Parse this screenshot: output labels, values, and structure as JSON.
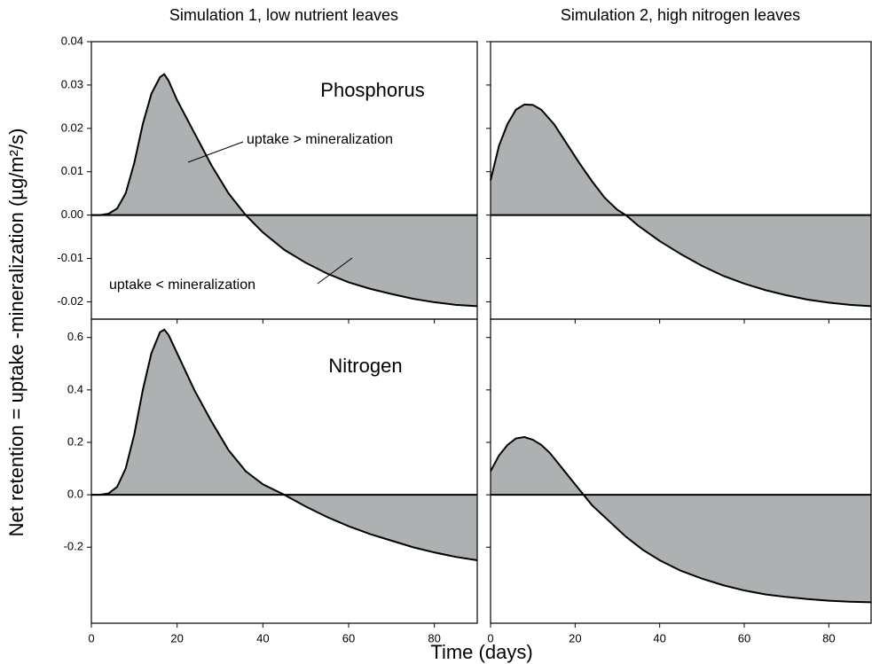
{
  "figure": {
    "y_label": "Net retention = uptake -mineralization  (µg/m²/s)",
    "x_label": "Time (days)"
  },
  "chart_data": [
    {
      "type": "area",
      "title": "Simulation 1, low nutrient leaves",
      "color": "#aeb1b2",
      "annotations": [
        "Phosphorus",
        "uptake > mineralization",
        "uptake < mineralization"
      ],
      "x": [
        0,
        2,
        4,
        6,
        8,
        10,
        12,
        14,
        16,
        17,
        18,
        20,
        24,
        28,
        32,
        36,
        40,
        45,
        50,
        55,
        60,
        65,
        70,
        75,
        80,
        85,
        90
      ],
      "values": [
        0,
        0,
        0.0003,
        0.0015,
        0.005,
        0.012,
        0.021,
        0.028,
        0.0318,
        0.0325,
        0.031,
        0.0265,
        0.019,
        0.0115,
        0.005,
        0,
        -0.004,
        -0.008,
        -0.011,
        -0.0135,
        -0.0155,
        -0.017,
        -0.0182,
        -0.0193,
        -0.0201,
        -0.0207,
        -0.021
      ],
      "xlim": [
        0,
        90
      ],
      "xticks": [
        0,
        20,
        40,
        60,
        80
      ],
      "ylim": [
        -0.024,
        0.04
      ],
      "yticks": [
        -0.02,
        -0.01,
        {
          "value": 0,
          "label": "0.00"
        },
        0.01,
        0.02,
        0.03,
        0.04
      ]
    },
    {
      "type": "area",
      "title": "Simulation 2, high nitrogen leaves",
      "color": "#aeb1b2",
      "x": [
        0,
        2,
        4,
        6,
        8,
        10,
        12,
        15,
        18,
        21,
        24,
        27,
        30,
        32,
        35,
        40,
        45,
        50,
        55,
        60,
        65,
        70,
        75,
        80,
        85,
        90
      ],
      "values": [
        0.008,
        0.016,
        0.021,
        0.0243,
        0.0255,
        0.0254,
        0.0243,
        0.021,
        0.0165,
        0.012,
        0.0078,
        0.004,
        0.0012,
        0,
        -0.0025,
        -0.006,
        -0.009,
        -0.0117,
        -0.014,
        -0.0158,
        -0.0173,
        -0.0185,
        -0.0195,
        -0.0202,
        -0.0207,
        -0.021
      ],
      "xlim": [
        0,
        90
      ],
      "xticks": [
        0,
        20,
        40,
        60,
        80
      ],
      "ylim": [
        -0.024,
        0.04
      ],
      "yticks": [
        -0.02,
        -0.01,
        0,
        0.01,
        0.02,
        0.03,
        0.04
      ]
    },
    {
      "type": "area",
      "color": "#aeb1b2",
      "annotations": [
        "Nitrogen"
      ],
      "x": [
        0,
        2,
        4,
        6,
        8,
        10,
        12,
        14,
        16,
        17,
        18,
        20,
        24,
        28,
        32,
        36,
        40,
        45,
        50,
        55,
        60,
        65,
        70,
        75,
        80,
        85,
        90
      ],
      "values": [
        0,
        0,
        0.005,
        0.03,
        0.1,
        0.23,
        0.4,
        0.54,
        0.62,
        0.63,
        0.61,
        0.54,
        0.4,
        0.28,
        0.17,
        0.09,
        0.04,
        0,
        -0.045,
        -0.085,
        -0.12,
        -0.15,
        -0.175,
        -0.2,
        -0.22,
        -0.237,
        -0.25
      ],
      "xlim": [
        0,
        90
      ],
      "xticks": [
        0,
        20,
        40,
        60,
        80
      ],
      "ylim": [
        -0.49,
        0.67
      ],
      "yticks": [
        -0.2,
        {
          "value": 0,
          "label": "0.0"
        },
        0.2,
        0.4,
        0.6
      ]
    },
    {
      "type": "area",
      "color": "#aeb1b2",
      "x": [
        0,
        2,
        4,
        6,
        8,
        10,
        12,
        14,
        16,
        18,
        21,
        24,
        28,
        32,
        36,
        40,
        45,
        50,
        55,
        60,
        65,
        70,
        75,
        80,
        85,
        90
      ],
      "values": [
        0.09,
        0.15,
        0.19,
        0.215,
        0.22,
        0.21,
        0.19,
        0.16,
        0.12,
        0.08,
        0.02,
        -0.04,
        -0.1,
        -0.16,
        -0.21,
        -0.25,
        -0.29,
        -0.32,
        -0.345,
        -0.365,
        -0.38,
        -0.39,
        -0.398,
        -0.404,
        -0.408,
        -0.41
      ],
      "xlim": [
        0,
        90
      ],
      "xticks": [
        0,
        20,
        40,
        60,
        80
      ],
      "ylim": [
        -0.49,
        0.67
      ],
      "yticks": [
        -0.2,
        0,
        0.2,
        0.4,
        0.6
      ]
    }
  ]
}
